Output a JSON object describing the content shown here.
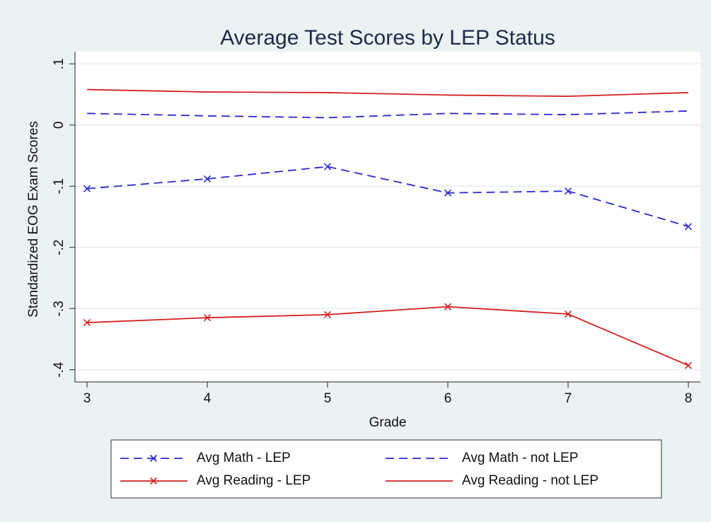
{
  "chart_data": {
    "type": "line",
    "title": "Average Test Scores by LEP Status",
    "xlabel": "Grade",
    "ylabel": "Standardized EOG Exam Scores",
    "x": [
      3,
      4,
      5,
      6,
      7,
      8
    ],
    "xlim": [
      2.9,
      8.1
    ],
    "xticks": [
      3,
      4,
      5,
      6,
      7,
      8
    ],
    "ylim": [
      -0.42,
      0.12
    ],
    "yticks": [
      {
        "value": 0.1,
        "label": ".1"
      },
      0,
      {
        "value": -0.1,
        "label": "-.1"
      },
      {
        "value": -0.2,
        "label": "-.2"
      },
      {
        "value": -0.3,
        "label": "-.3"
      },
      {
        "value": -0.4,
        "label": "-.4"
      }
    ],
    "grid": true,
    "legend": "bottom",
    "series": [
      {
        "name": "Avg Math - LEP",
        "color": "#2a2ad0",
        "dashed": true,
        "marker": "x",
        "values": [
          -0.104,
          -0.088,
          -0.068,
          -0.111,
          -0.108,
          -0.166
        ]
      },
      {
        "name": "Avg Math - not LEP",
        "color": "#2a2ad0",
        "dashed": true,
        "marker": null,
        "values": [
          0.019,
          0.015,
          0.012,
          0.019,
          0.017,
          0.023
        ]
      },
      {
        "name": "Avg Reading - LEP",
        "color": "#d42020",
        "dashed": false,
        "marker": "x",
        "values": [
          -0.323,
          -0.315,
          -0.31,
          -0.297,
          -0.309,
          -0.393
        ]
      },
      {
        "name": "Avg Reading - not LEP",
        "color": "#d42020",
        "dashed": false,
        "marker": null,
        "values": [
          0.058,
          0.054,
          0.053,
          0.049,
          0.047,
          0.053
        ]
      }
    ]
  }
}
